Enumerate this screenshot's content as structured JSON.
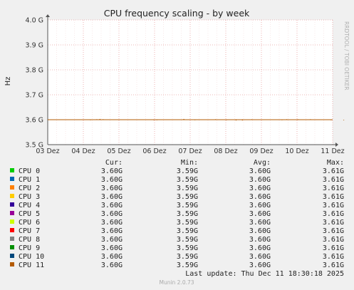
{
  "chart_data": {
    "type": "line",
    "title": "CPU frequency scaling - by week",
    "ylabel": "Hz",
    "side_label": "RRDTOOL / TOBI OETIKER",
    "x_ticks": [
      "03 Dez",
      "04 Dez",
      "05 Dez",
      "06 Dez",
      "07 Dez",
      "08 Dez",
      "09 Dez",
      "10 Dez",
      "11 Dez"
    ],
    "y_ticks": [
      "4.0 G",
      "3.9 G",
      "3.8 G",
      "3.7 G",
      "3.6 G",
      "3.5 G"
    ],
    "ylim": [
      3.5,
      4.0
    ],
    "grid": true,
    "series": [
      {
        "name": "CPU 0",
        "color": "#00cc00",
        "cur": "3.60G",
        "min": "3.59G",
        "avg": "3.60G",
        "max": "3.61G"
      },
      {
        "name": "CPU 1",
        "color": "#0066b3",
        "cur": "3.60G",
        "min": "3.59G",
        "avg": "3.60G",
        "max": "3.61G"
      },
      {
        "name": "CPU 2",
        "color": "#ff8000",
        "cur": "3.60G",
        "min": "3.59G",
        "avg": "3.60G",
        "max": "3.61G"
      },
      {
        "name": "CPU 3",
        "color": "#ffcc00",
        "cur": "3.60G",
        "min": "3.59G",
        "avg": "3.60G",
        "max": "3.61G"
      },
      {
        "name": "CPU 4",
        "color": "#330099",
        "cur": "3.60G",
        "min": "3.59G",
        "avg": "3.60G",
        "max": "3.61G"
      },
      {
        "name": "CPU 5",
        "color": "#990099",
        "cur": "3.60G",
        "min": "3.59G",
        "avg": "3.60G",
        "max": "3.61G"
      },
      {
        "name": "CPU 6",
        "color": "#ccff00",
        "cur": "3.60G",
        "min": "3.59G",
        "avg": "3.60G",
        "max": "3.61G"
      },
      {
        "name": "CPU 7",
        "color": "#ff0000",
        "cur": "3.60G",
        "min": "3.59G",
        "avg": "3.60G",
        "max": "3.61G"
      },
      {
        "name": "CPU 8",
        "color": "#808080",
        "cur": "3.60G",
        "min": "3.59G",
        "avg": "3.60G",
        "max": "3.61G"
      },
      {
        "name": "CPU 9",
        "color": "#008f00",
        "cur": "3.60G",
        "min": "3.59G",
        "avg": "3.60G",
        "max": "3.61G"
      },
      {
        "name": "CPU 10",
        "color": "#00487d",
        "cur": "3.60G",
        "min": "3.59G",
        "avg": "3.60G",
        "max": "3.61G"
      },
      {
        "name": "CPU 11",
        "color": "#b35a00",
        "cur": "3.60G",
        "min": "3.59G",
        "avg": "3.60G",
        "max": "3.61G"
      }
    ],
    "line_value": 3.6,
    "spikes": [
      [
        1.35,
        3.598
      ],
      [
        1.55,
        3.602
      ],
      [
        1.65,
        3.603
      ],
      [
        1.75,
        3.602
      ],
      [
        3.35,
        3.598
      ],
      [
        3.45,
        3.598
      ],
      [
        4.3,
        3.603
      ],
      [
        4.4,
        3.599
      ],
      [
        4.65,
        3.598
      ],
      [
        5.3,
        3.602
      ],
      [
        5.65,
        3.598
      ],
      [
        5.95,
        3.597
      ],
      [
        6.15,
        3.597
      ],
      [
        6.45,
        3.602
      ],
      [
        7.4,
        3.598
      ],
      [
        7.55,
        3.602
      ],
      [
        7.9,
        3.602
      ],
      [
        8.3,
        3.602
      ],
      [
        8.95,
        3.598
      ],
      [
        9.35,
        3.598
      ]
    ]
  },
  "legend": {
    "headers": {
      "cur": "Cur:",
      "min": "Min:",
      "avg": "Avg:",
      "max": "Max:"
    }
  },
  "footer": {
    "last_update": "Last update: Thu Dec 11 18:30:18 2025",
    "version": "Munin 2.0.73"
  }
}
